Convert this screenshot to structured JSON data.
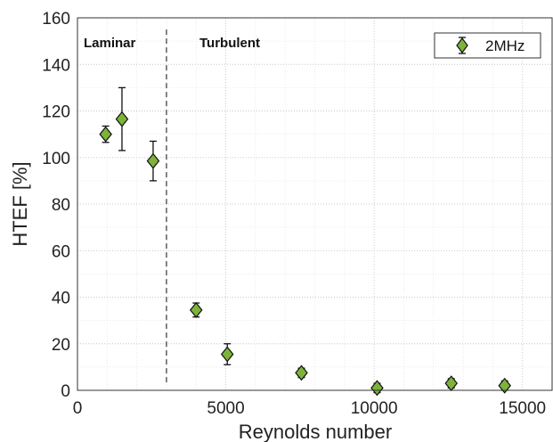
{
  "chart_data": {
    "type": "scatter",
    "xlabel": "Reynolds number",
    "ylabel": "HTEF [%]",
    "xlim": [
      0,
      16000
    ],
    "ylim": [
      0,
      160
    ],
    "xticks": [
      0,
      5000,
      10000,
      15000
    ],
    "yticks": [
      0,
      20,
      40,
      60,
      80,
      100,
      120,
      140,
      160
    ],
    "grid": "on (dotted, major and minor)",
    "legend": {
      "placement": "top-right",
      "entries": [
        "2MHz"
      ]
    },
    "annotations": [
      {
        "text": "Laminar"
      },
      {
        "text": "Turbulent"
      }
    ],
    "divider_x": 3000,
    "series": [
      {
        "name": "2MHz",
        "marker": "diamond",
        "color": "#7db33a",
        "points": [
          {
            "x": 950,
            "y": 110,
            "err": 3.5
          },
          {
            "x": 1500,
            "y": 116.5,
            "err": 13.5
          },
          {
            "x": 2550,
            "y": 98.5,
            "err": 8.5
          },
          {
            "x": 4000,
            "y": 34.5,
            "err": 3
          },
          {
            "x": 5050,
            "y": 15.5,
            "err": 4.5
          },
          {
            "x": 7550,
            "y": 7.5,
            "err": 2
          },
          {
            "x": 10100,
            "y": 1,
            "err": 2
          },
          {
            "x": 12600,
            "y": 3,
            "err": 2
          },
          {
            "x": 14400,
            "y": 2,
            "err": 2
          }
        ]
      }
    ]
  }
}
